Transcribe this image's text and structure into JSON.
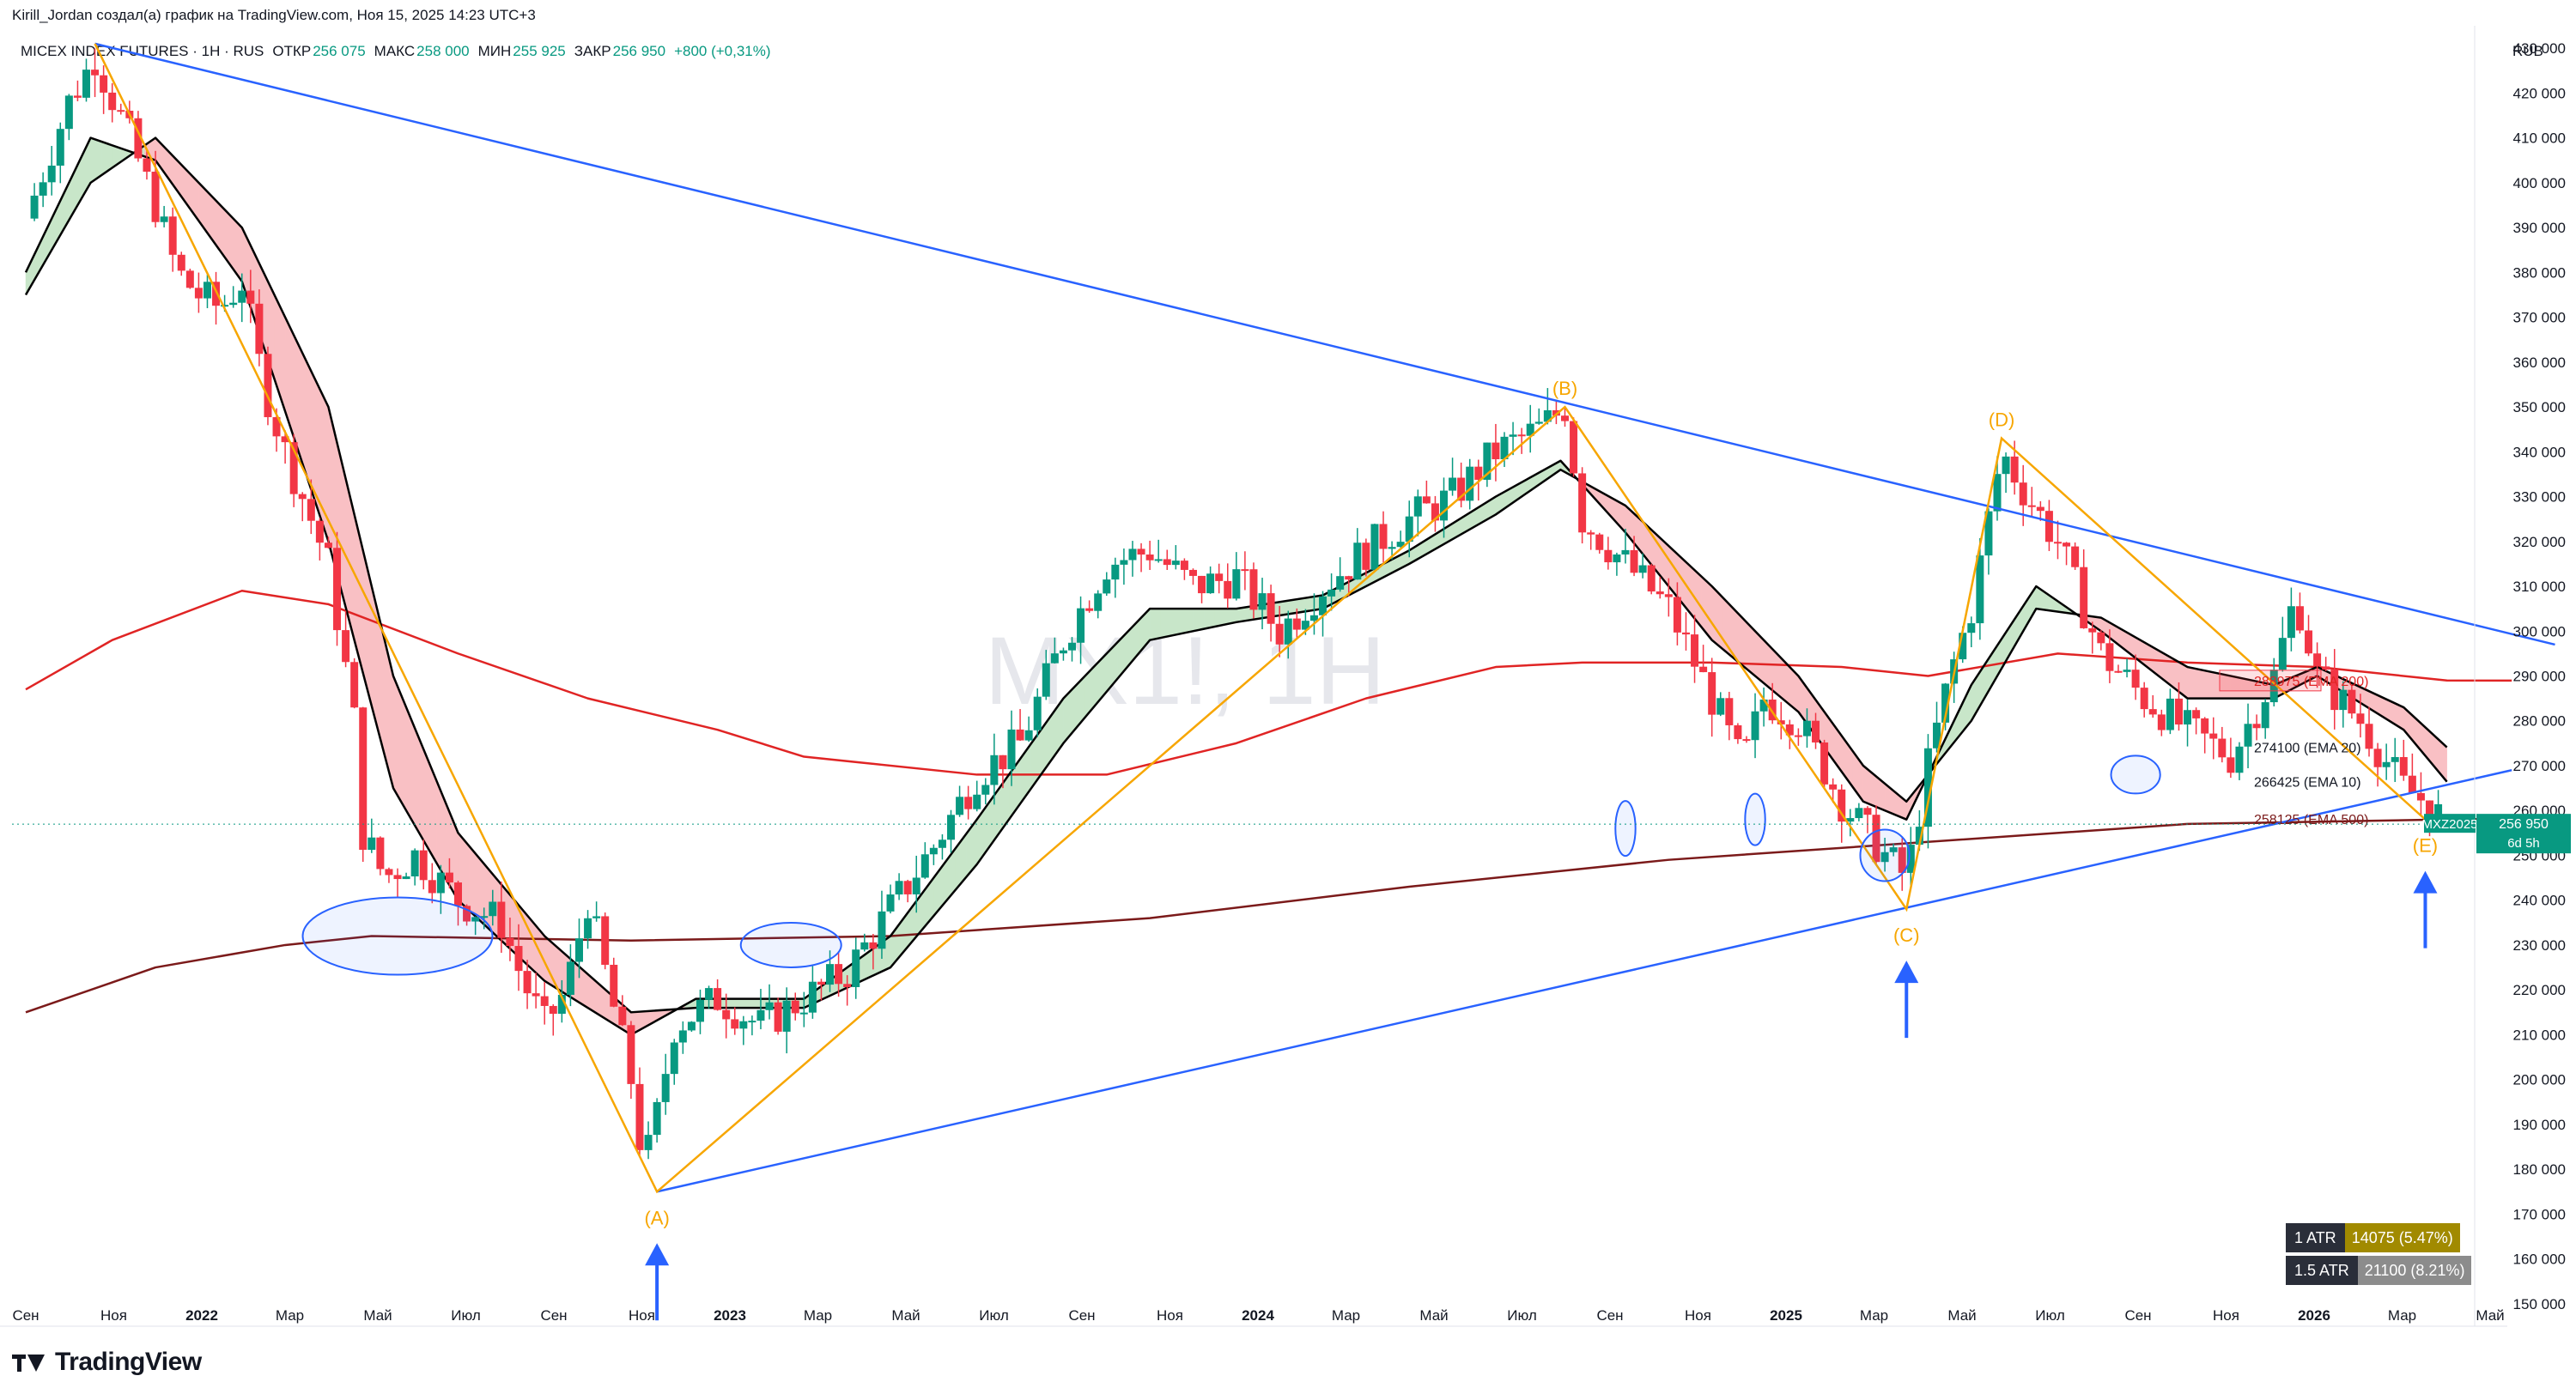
{
  "header": {
    "caption": "Kirill_Jordan создал(а) график на TradingView.com, Ноя 15, 2025 14:23 UTC+3",
    "symbol": "MICEX INDEX FUTURES · 1H · RUS",
    "open_label": "ОТКР",
    "open_value": "256 075",
    "high_label": "МАКС",
    "high_value": "258 000",
    "low_label": "МИН",
    "low_value": "255 925",
    "close_label": "ЗАКР",
    "close_value": "256 950",
    "change": "+800 (+0,31%)",
    "currency": "RUB"
  },
  "watermark": "MX1!, 1H",
  "price_tag": {
    "ticker": "MXZ2025",
    "price": "256 950",
    "countdown": "6d 5h"
  },
  "atr": [
    {
      "label": "1 ATR",
      "value": "14075 (5.47%)",
      "color": "#a18a00"
    },
    {
      "label": "1.5 ATR",
      "value": "21100 (8.21%)",
      "color": "#8c8c8c"
    }
  ],
  "logo": {
    "text": "TradingView"
  },
  "colors": {
    "up": "#089981",
    "down": "#f23645",
    "ema10_20_line": "#000000",
    "fill_up": "#c8e6c9",
    "fill_down": "#f9c0c4",
    "ema200": "#e02424",
    "ema500": "#7b1a1a",
    "trend": "#2962ff",
    "wave": "#f7a600"
  },
  "chart_data": {
    "type": "candlestick",
    "title": "MICEX INDEX FUTURES",
    "ylabel": "RUB",
    "ylim": [
      145000,
      435000
    ],
    "y_ticks": [
      150000,
      160000,
      170000,
      180000,
      190000,
      200000,
      210000,
      220000,
      230000,
      240000,
      250000,
      260000,
      270000,
      280000,
      290000,
      300000,
      310000,
      320000,
      330000,
      340000,
      350000,
      360000,
      370000,
      380000,
      390000,
      400000,
      410000,
      420000,
      430000
    ],
    "y_tick_labels": [
      "150 000",
      "160 000",
      "170 000",
      "180 000",
      "190 000",
      "200 000",
      "210 000",
      "220 000",
      "230 000",
      "240 000",
      "250 000",
      "260 000",
      "270 000",
      "280 000",
      "290 000",
      "300 000",
      "310 000",
      "320 000",
      "330 000",
      "340 000",
      "350 000",
      "360 000",
      "370 000",
      "380 000",
      "390 000",
      "400 000",
      "410 000",
      "420 000",
      "430 000"
    ],
    "x_ticks": [
      {
        "label": "Сен",
        "bold": false
      },
      {
        "label": "Ноя",
        "bold": false
      },
      {
        "label": "2022",
        "bold": true
      },
      {
        "label": "Мар",
        "bold": false
      },
      {
        "label": "Май",
        "bold": false
      },
      {
        "label": "Июл",
        "bold": false
      },
      {
        "label": "Сен",
        "bold": false
      },
      {
        "label": "Ноя",
        "bold": false
      },
      {
        "label": "2023",
        "bold": true
      },
      {
        "label": "Мар",
        "bold": false
      },
      {
        "label": "Май",
        "bold": false
      },
      {
        "label": "Июл",
        "bold": false
      },
      {
        "label": "Сен",
        "bold": false
      },
      {
        "label": "Ноя",
        "bold": false
      },
      {
        "label": "2024",
        "bold": true
      },
      {
        "label": "Мар",
        "bold": false
      },
      {
        "label": "Май",
        "bold": false
      },
      {
        "label": "Июл",
        "bold": false
      },
      {
        "label": "Сен",
        "bold": false
      },
      {
        "label": "Ноя",
        "bold": false
      },
      {
        "label": "2025",
        "bold": true
      },
      {
        "label": "Мар",
        "bold": false
      },
      {
        "label": "Май",
        "bold": false
      },
      {
        "label": "Июл",
        "bold": false
      },
      {
        "label": "Сен",
        "bold": false
      },
      {
        "label": "Ноя",
        "bold": false
      },
      {
        "label": "2026",
        "bold": true
      },
      {
        "label": "Мар",
        "bold": false
      },
      {
        "label": "Май",
        "bold": false
      }
    ],
    "x_range_months": [
      0,
      57
    ],
    "close_path": [
      [
        0,
        392000
      ],
      [
        1,
        418000
      ],
      [
        1.6,
        428000
      ],
      [
        2.4,
        410000
      ],
      [
        3,
        395000
      ],
      [
        3.5,
        380000
      ],
      [
        4,
        375000
      ],
      [
        4.5,
        372000
      ],
      [
        5,
        378000
      ],
      [
        5.5,
        355000
      ],
      [
        6,
        340000
      ],
      [
        6.6,
        325000
      ],
      [
        7,
        315000
      ],
      [
        7.6,
        280000
      ],
      [
        7.8,
        255000
      ],
      [
        8.3,
        245000
      ],
      [
        9,
        250000
      ],
      [
        10,
        240000
      ],
      [
        11,
        235000
      ],
      [
        11.5,
        222000
      ],
      [
        12,
        212000
      ],
      [
        12.5,
        220000
      ],
      [
        13,
        240000
      ],
      [
        13.5,
        220000
      ],
      [
        14,
        200000
      ],
      [
        14.3,
        180000
      ],
      [
        14.6,
        192000
      ],
      [
        15,
        212000
      ],
      [
        16,
        218000
      ],
      [
        17,
        212000
      ],
      [
        18,
        218000
      ],
      [
        19,
        224000
      ],
      [
        20,
        238000
      ],
      [
        21,
        252000
      ],
      [
        22,
        268000
      ],
      [
        23,
        275000
      ],
      [
        24,
        298000
      ],
      [
        25,
        315000
      ],
      [
        26,
        318000
      ],
      [
        27,
        310000
      ],
      [
        28,
        312000
      ],
      [
        29,
        300000
      ],
      [
        30,
        310000
      ],
      [
        31,
        318000
      ],
      [
        32,
        325000
      ],
      [
        33,
        330000
      ],
      [
        34,
        340000
      ],
      [
        35,
        345000
      ],
      [
        35.6,
        350000
      ],
      [
        36,
        325000
      ],
      [
        37,
        315000
      ],
      [
        38,
        305000
      ],
      [
        39,
        285000
      ],
      [
        39.7,
        270000
      ],
      [
        40.2,
        285000
      ],
      [
        41,
        280000
      ],
      [
        42,
        262000
      ],
      [
        43,
        250000
      ],
      [
        43.5,
        245000
      ],
      [
        44,
        270000
      ],
      [
        44.5,
        290000
      ],
      [
        45,
        305000
      ],
      [
        45.7,
        340000
      ],
      [
        46.3,
        330000
      ],
      [
        47,
        320000
      ],
      [
        48,
        295000
      ],
      [
        49,
        285000
      ],
      [
        50,
        278000
      ],
      [
        51,
        272000
      ],
      [
        52,
        290000
      ],
      [
        52.5,
        308000
      ],
      [
        53,
        290000
      ],
      [
        54,
        280000
      ],
      [
        55,
        265000
      ],
      [
        55.5,
        262000
      ],
      [
        56,
        256950
      ]
    ],
    "series": [
      {
        "name": "EMA 10",
        "last": "266425",
        "values": [
          [
            0,
            380000
          ],
          [
            1.5,
            410000
          ],
          [
            3,
            405000
          ],
          [
            5,
            378000
          ],
          [
            7,
            320000
          ],
          [
            8.5,
            265000
          ],
          [
            10,
            240000
          ],
          [
            12,
            222000
          ],
          [
            14,
            210000
          ],
          [
            15.5,
            218000
          ],
          [
            18,
            218000
          ],
          [
            20,
            232000
          ],
          [
            22,
            258000
          ],
          [
            24,
            285000
          ],
          [
            26,
            305000
          ],
          [
            28,
            305000
          ],
          [
            30,
            308000
          ],
          [
            32,
            318000
          ],
          [
            34,
            330000
          ],
          [
            35.5,
            338000
          ],
          [
            37,
            322000
          ],
          [
            39,
            298000
          ],
          [
            41,
            282000
          ],
          [
            42.5,
            262000
          ],
          [
            43.5,
            258000
          ],
          [
            45,
            288000
          ],
          [
            46.5,
            310000
          ],
          [
            48,
            300000
          ],
          [
            50,
            285000
          ],
          [
            52,
            285000
          ],
          [
            53,
            290000
          ],
          [
            55,
            278000
          ],
          [
            56,
            266425
          ]
        ]
      },
      {
        "name": "EMA 20",
        "last": "274100",
        "values": [
          [
            0,
            375000
          ],
          [
            1.5,
            400000
          ],
          [
            3,
            410000
          ],
          [
            5,
            390000
          ],
          [
            7,
            350000
          ],
          [
            8.5,
            290000
          ],
          [
            10,
            255000
          ],
          [
            12,
            232000
          ],
          [
            14,
            215000
          ],
          [
            15.5,
            216000
          ],
          [
            18,
            216000
          ],
          [
            20,
            225000
          ],
          [
            22,
            248000
          ],
          [
            24,
            275000
          ],
          [
            26,
            298000
          ],
          [
            28,
            302000
          ],
          [
            30,
            305000
          ],
          [
            32,
            315000
          ],
          [
            34,
            326000
          ],
          [
            35.5,
            336000
          ],
          [
            37,
            328000
          ],
          [
            39,
            310000
          ],
          [
            41,
            290000
          ],
          [
            42.5,
            270000
          ],
          [
            43.5,
            262000
          ],
          [
            45,
            280000
          ],
          [
            46.5,
            305000
          ],
          [
            48,
            303000
          ],
          [
            50,
            292000
          ],
          [
            52,
            288000
          ],
          [
            53,
            292000
          ],
          [
            55,
            283000
          ],
          [
            56,
            274100
          ]
        ]
      },
      {
        "name": "EMA 200",
        "last": "288975",
        "values": [
          [
            0,
            287000
          ],
          [
            2,
            298000
          ],
          [
            5,
            309000
          ],
          [
            7,
            306000
          ],
          [
            10,
            295000
          ],
          [
            13,
            285000
          ],
          [
            16,
            278000
          ],
          [
            18,
            272000
          ],
          [
            22,
            268000
          ],
          [
            25,
            268000
          ],
          [
            28,
            275000
          ],
          [
            31,
            285000
          ],
          [
            34,
            292000
          ],
          [
            36,
            293000
          ],
          [
            39,
            293000
          ],
          [
            42,
            292000
          ],
          [
            44,
            290000
          ],
          [
            47,
            295000
          ],
          [
            50,
            293000
          ],
          [
            53,
            292000
          ],
          [
            56,
            289000
          ],
          [
            57.5,
            288975
          ]
        ]
      },
      {
        "name": "EMA 500",
        "last": "258125",
        "values": [
          [
            0,
            215000
          ],
          [
            3,
            225000
          ],
          [
            6,
            230000
          ],
          [
            8,
            232000
          ],
          [
            14,
            231000
          ],
          [
            20,
            232000
          ],
          [
            26,
            236000
          ],
          [
            32,
            243000
          ],
          [
            38,
            249000
          ],
          [
            44,
            253000
          ],
          [
            50,
            257000
          ],
          [
            56,
            258000
          ],
          [
            57.5,
            258125
          ]
        ]
      }
    ],
    "trendlines": [
      {
        "from": [
          1.6,
          431000
        ],
        "to": [
          58.5,
          297000
        ]
      },
      {
        "from": [
          14.6,
          175000
        ],
        "to": [
          57.5,
          269000
        ]
      }
    ],
    "wave_points": [
      {
        "label": "(A)",
        "x": 14.6,
        "y": 175000
      },
      {
        "label": "(B)",
        "x": 35.6,
        "y": 350000
      },
      {
        "label": "(C)",
        "x": 43.5,
        "y": 238000
      },
      {
        "label": "(D)",
        "x": 45.7,
        "y": 343000
      },
      {
        "label": "(E)",
        "x": 55.5,
        "y": 258000
      }
    ],
    "value_labels": [
      {
        "text": "288975 (EMA 200)",
        "value": 288975
      },
      {
        "text": "274100 (EMA 20)",
        "value": 274100
      },
      {
        "text": "266425 (EMA 10)",
        "value": 266425
      },
      {
        "text": "258125 (EMA 500)",
        "value": 258125
      }
    ]
  }
}
